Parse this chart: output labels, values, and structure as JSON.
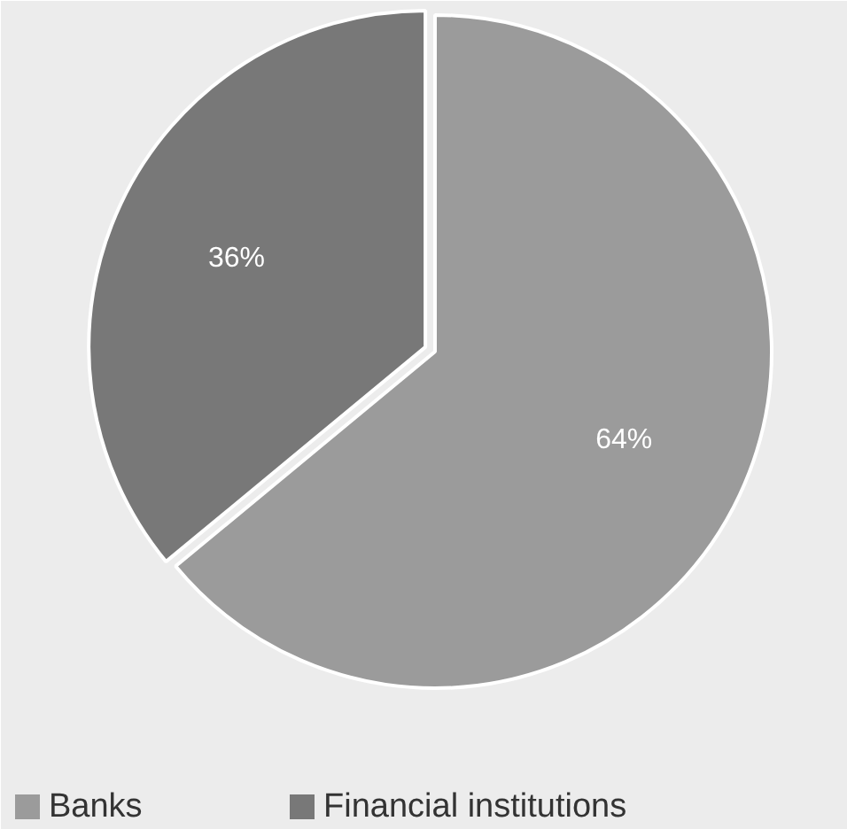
{
  "chart_data": {
    "type": "pie",
    "categories": [
      "Banks",
      "Financial institutions"
    ],
    "values": [
      64,
      36
    ],
    "colors": [
      "#9b9b9b",
      "#787878"
    ],
    "value_labels": [
      "64%",
      "36%"
    ],
    "legend": "bottom"
  }
}
